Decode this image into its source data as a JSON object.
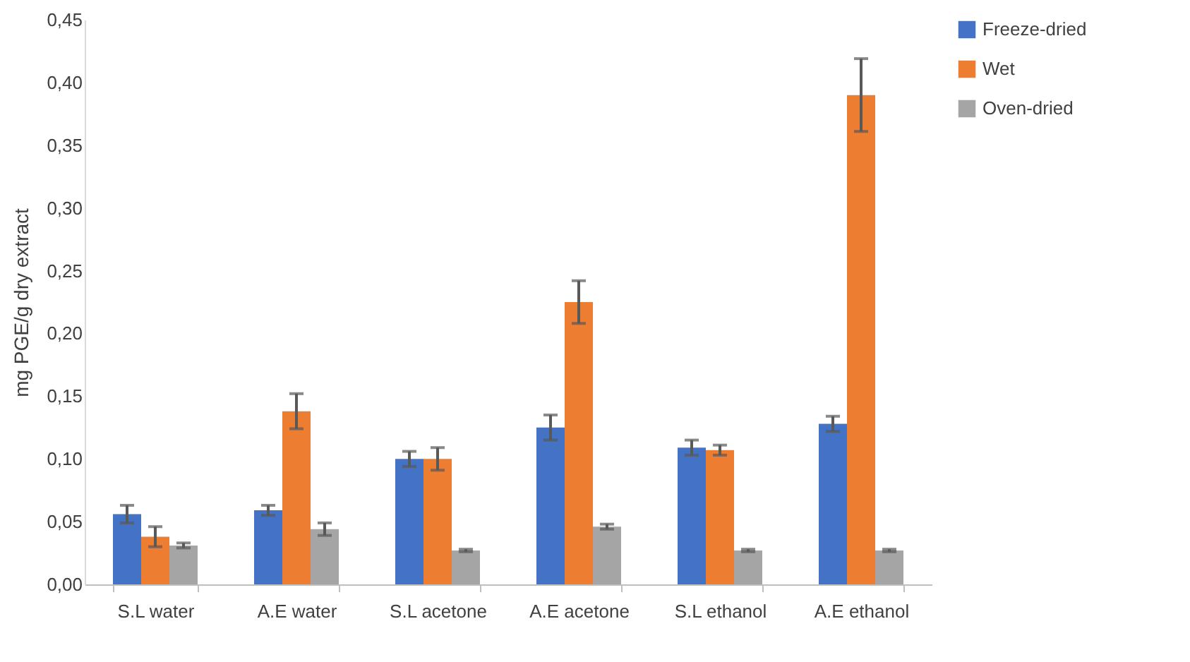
{
  "chart_data": {
    "type": "bar",
    "ylabel": "mg PGE/g dry extract",
    "categories": [
      "S.L water",
      "A.E water",
      "S.L acetone",
      "A.E acetone",
      "S.L ethanol",
      "A.E ethanol"
    ],
    "series": [
      {
        "name": "Freeze-dried",
        "color": "#4472c4",
        "values": [
          0.056,
          0.059,
          0.1,
          0.125,
          0.109,
          0.128
        ],
        "errors": [
          0.007,
          0.004,
          0.006,
          0.01,
          0.006,
          0.006
        ]
      },
      {
        "name": "Wet",
        "color": "#ed7d31",
        "values": [
          0.038,
          0.138,
          0.1,
          0.225,
          0.107,
          0.39
        ],
        "errors": [
          0.008,
          0.014,
          0.009,
          0.017,
          0.004,
          0.029
        ]
      },
      {
        "name": "Oven-dried",
        "color": "#a5a5a5",
        "values": [
          0.031,
          0.044,
          0.027,
          0.046,
          0.027,
          0.027
        ],
        "errors": [
          0.002,
          0.005,
          0.001,
          0.002,
          0.001,
          0.001
        ]
      }
    ],
    "ylim": [
      0,
      0.45
    ],
    "yticks": [
      {
        "value": 0,
        "label": "0,00"
      },
      {
        "value": 0.05,
        "label": "0,05"
      },
      {
        "value": 0.1,
        "label": "0,10"
      },
      {
        "value": 0.15,
        "label": "0,15"
      },
      {
        "value": 0.2,
        "label": "0,20"
      },
      {
        "value": 0.25,
        "label": "0,25"
      },
      {
        "value": 0.3,
        "label": "0,30"
      },
      {
        "value": 0.35,
        "label": "0,35"
      },
      {
        "value": 0.4,
        "label": "0,40"
      },
      {
        "value": 0.45,
        "label": "0,45"
      }
    ],
    "grid": false,
    "legend": "right"
  }
}
